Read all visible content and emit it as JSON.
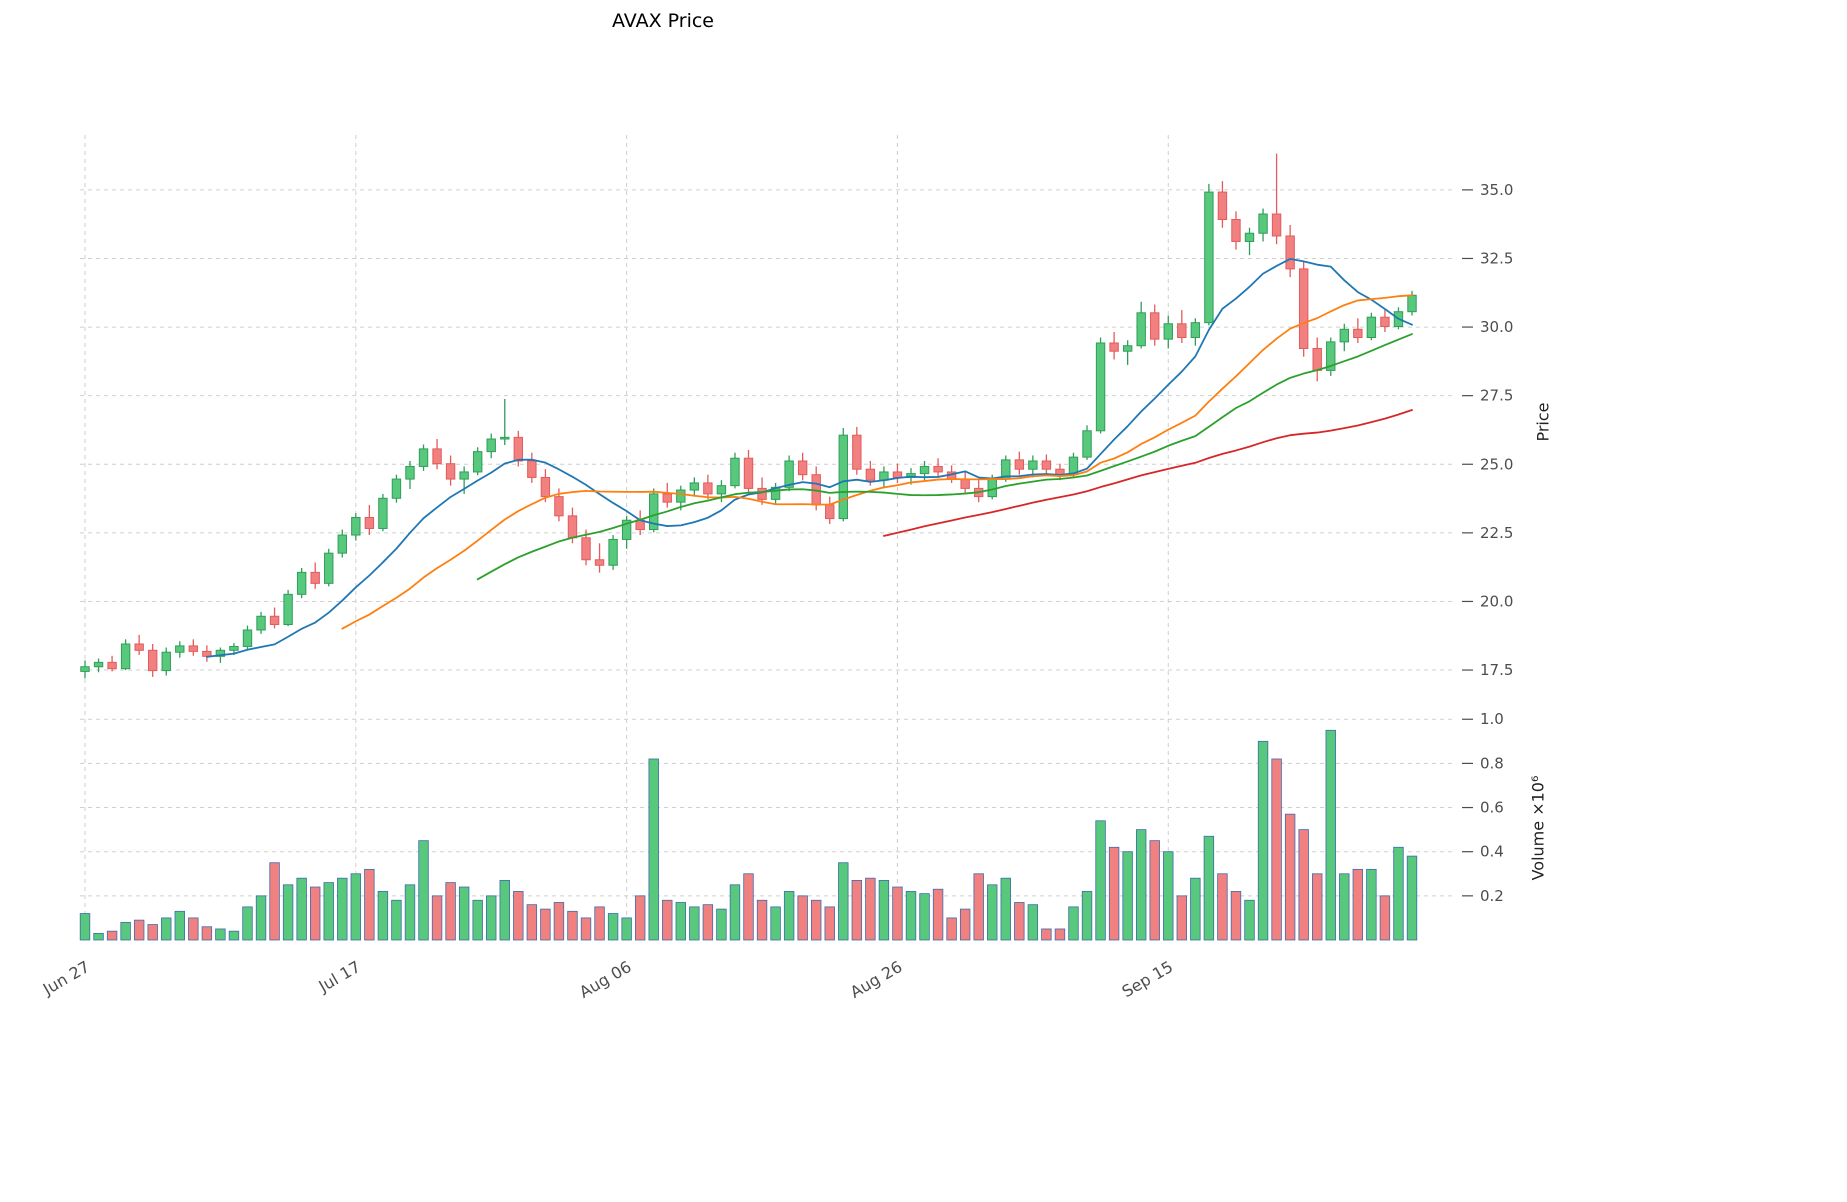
{
  "colors": {
    "up_fill": "#58c87c",
    "up_edge": "#2f9e5a",
    "down_fill": "#f18080",
    "down_edge": "#e35b5b",
    "volume_edge": "#3c6cae",
    "grid": "#cfcfcf",
    "tick_text": "#4d4d4d",
    "ma_blue": "#1f77b4",
    "ma_orange": "#ff7f0e",
    "ma_green": "#2ca02c",
    "ma_red": "#d62728"
  },
  "chart_data": {
    "type": "candlestick",
    "title": "AVAX Price",
    "ylabel": "Price",
    "volume_label": "Volume ×10⁶",
    "legend_position": "none",
    "grid": true,
    "price_ticks": [
      17.5,
      20.0,
      22.5,
      25.0,
      27.5,
      30.0,
      32.5,
      35.0
    ],
    "price_ylim": [
      16.7,
      37.0
    ],
    "volume_ticks": [
      0.2,
      0.4,
      0.6,
      0.8,
      1.0
    ],
    "volume_ylim": [
      0,
      1.06
    ],
    "x_ticks": [
      {
        "index": 0,
        "label": "Jun 27"
      },
      {
        "index": 20,
        "label": "Jul 17"
      },
      {
        "index": 40,
        "label": "Aug 06"
      },
      {
        "index": 60,
        "label": "Aug 26"
      },
      {
        "index": 80,
        "label": "Sep 15"
      }
    ],
    "moving_averages": [
      {
        "label": "MA10",
        "window": 10,
        "color": "#1f77b4"
      },
      {
        "label": "MA20",
        "window": 20,
        "color": "#ff7f0e"
      },
      {
        "label": "MA30",
        "window": 30,
        "color": "#2ca02c"
      },
      {
        "label": "MA60",
        "window": 60,
        "color": "#d62728"
      }
    ],
    "dates": [
      "Jun 27",
      "Jun 28",
      "Jun 29",
      "Jun 30",
      "Jul 01",
      "Jul 02",
      "Jul 03",
      "Jul 04",
      "Jul 05",
      "Jul 06",
      "Jul 07",
      "Jul 08",
      "Jul 09",
      "Jul 10",
      "Jul 11",
      "Jul 12",
      "Jul 13",
      "Jul 14",
      "Jul 15",
      "Jul 16",
      "Jul 17",
      "Jul 18",
      "Jul 19",
      "Jul 20",
      "Jul 21",
      "Jul 22",
      "Jul 23",
      "Jul 24",
      "Jul 25",
      "Jul 26",
      "Jul 27",
      "Jul 28",
      "Jul 29",
      "Jul 30",
      "Jul 31",
      "Aug 01",
      "Aug 02",
      "Aug 03",
      "Aug 04",
      "Aug 05",
      "Aug 06",
      "Aug 07",
      "Aug 08",
      "Aug 09",
      "Aug 10",
      "Aug 11",
      "Aug 12",
      "Aug 13",
      "Aug 14",
      "Aug 15",
      "Aug 16",
      "Aug 17",
      "Aug 18",
      "Aug 19",
      "Aug 20",
      "Aug 21",
      "Aug 22",
      "Aug 23",
      "Aug 24",
      "Aug 25",
      "Aug 26",
      "Aug 27",
      "Aug 28",
      "Aug 29",
      "Aug 30",
      "Aug 31",
      "Sep 01",
      "Sep 02",
      "Sep 03",
      "Sep 04",
      "Sep 05",
      "Sep 06",
      "Sep 07",
      "Sep 08",
      "Sep 09",
      "Sep 10",
      "Sep 11",
      "Sep 12",
      "Sep 13",
      "Sep 14",
      "Sep 15",
      "Sep 16",
      "Sep 17",
      "Sep 18",
      "Sep 19",
      "Sep 20",
      "Sep 21",
      "Sep 22",
      "Sep 23",
      "Sep 24",
      "Sep 25",
      "Sep 26",
      "Sep 27",
      "Sep 28",
      "Sep 29",
      "Sep 30",
      "Oct 01",
      "Oct 02",
      "Oct 03"
    ],
    "ohlc": [
      [
        17.45,
        17.85,
        17.2,
        17.62
      ],
      [
        17.62,
        17.92,
        17.42,
        17.78
      ],
      [
        17.78,
        18.02,
        17.45,
        17.55
      ],
      [
        17.55,
        18.62,
        17.5,
        18.45
      ],
      [
        18.45,
        18.78,
        18.05,
        18.22
      ],
      [
        18.22,
        18.45,
        17.25,
        17.48
      ],
      [
        17.48,
        18.32,
        17.3,
        18.15
      ],
      [
        18.15,
        18.55,
        17.95,
        18.38
      ],
      [
        18.38,
        18.62,
        18.02,
        18.18
      ],
      [
        18.18,
        18.4,
        17.8,
        18.0
      ],
      [
        18.0,
        18.32,
        17.76,
        18.22
      ],
      [
        18.22,
        18.48,
        18.05,
        18.36
      ],
      [
        18.36,
        19.12,
        18.26,
        18.96
      ],
      [
        18.96,
        19.62,
        18.82,
        19.46
      ],
      [
        19.46,
        19.78,
        19.02,
        19.16
      ],
      [
        19.16,
        20.42,
        19.1,
        20.26
      ],
      [
        20.26,
        21.22,
        20.12,
        21.06
      ],
      [
        21.06,
        21.42,
        20.46,
        20.66
      ],
      [
        20.66,
        21.92,
        20.55,
        21.76
      ],
      [
        21.76,
        22.62,
        21.6,
        22.42
      ],
      [
        22.42,
        23.22,
        22.22,
        23.06
      ],
      [
        23.06,
        23.52,
        22.42,
        22.66
      ],
      [
        22.66,
        23.92,
        22.56,
        23.76
      ],
      [
        23.76,
        24.62,
        23.6,
        24.46
      ],
      [
        24.46,
        25.12,
        24.1,
        24.92
      ],
      [
        24.92,
        25.72,
        24.76,
        25.56
      ],
      [
        25.56,
        25.92,
        24.82,
        25.02
      ],
      [
        25.02,
        25.32,
        24.22,
        24.46
      ],
      [
        24.46,
        24.92,
        23.92,
        24.72
      ],
      [
        24.72,
        25.62,
        24.6,
        25.46
      ],
      [
        25.46,
        26.12,
        25.22,
        25.92
      ],
      [
        25.92,
        27.38,
        25.7,
        25.98
      ],
      [
        25.98,
        26.22,
        24.92,
        25.12
      ],
      [
        25.12,
        25.42,
        24.32,
        24.52
      ],
      [
        24.52,
        24.82,
        23.62,
        23.82
      ],
      [
        23.82,
        24.12,
        22.92,
        23.12
      ],
      [
        23.12,
        23.42,
        22.12,
        22.32
      ],
      [
        22.32,
        22.62,
        21.32,
        21.52
      ],
      [
        21.52,
        22.12,
        21.05,
        21.32
      ],
      [
        21.32,
        22.42,
        21.15,
        22.26
      ],
      [
        22.26,
        23.12,
        21.92,
        22.96
      ],
      [
        22.96,
        23.32,
        22.42,
        22.62
      ],
      [
        22.62,
        24.12,
        22.52,
        23.92
      ],
      [
        23.92,
        24.32,
        23.42,
        23.62
      ],
      [
        23.62,
        24.22,
        23.32,
        24.06
      ],
      [
        24.06,
        24.52,
        23.82,
        24.32
      ],
      [
        24.32,
        24.62,
        23.72,
        23.92
      ],
      [
        23.92,
        24.42,
        23.62,
        24.22
      ],
      [
        24.22,
        25.42,
        24.12,
        25.22
      ],
      [
        25.22,
        25.52,
        23.92,
        24.12
      ],
      [
        24.12,
        24.52,
        23.52,
        23.72
      ],
      [
        23.72,
        24.32,
        23.52,
        24.16
      ],
      [
        24.16,
        25.32,
        24.02,
        25.12
      ],
      [
        25.12,
        25.42,
        24.42,
        24.62
      ],
      [
        24.62,
        24.92,
        23.32,
        23.52
      ],
      [
        23.52,
        23.82,
        22.82,
        23.02
      ],
      [
        23.02,
        26.32,
        22.92,
        26.06
      ],
      [
        26.06,
        26.36,
        24.62,
        24.82
      ],
      [
        24.82,
        25.12,
        24.22,
        24.42
      ],
      [
        24.42,
        24.92,
        24.12,
        24.72
      ],
      [
        24.72,
        25.02,
        24.32,
        24.52
      ],
      [
        24.52,
        24.86,
        24.26,
        24.66
      ],
      [
        24.66,
        25.12,
        24.42,
        24.92
      ],
      [
        24.92,
        25.22,
        24.52,
        24.72
      ],
      [
        24.72,
        24.96,
        24.32,
        24.46
      ],
      [
        24.46,
        24.72,
        23.92,
        24.12
      ],
      [
        24.12,
        24.42,
        23.62,
        23.82
      ],
      [
        23.82,
        24.62,
        23.72,
        24.46
      ],
      [
        24.46,
        25.32,
        24.36,
        25.16
      ],
      [
        25.16,
        25.46,
        24.62,
        24.82
      ],
      [
        24.82,
        25.32,
        24.52,
        25.12
      ],
      [
        25.12,
        25.36,
        24.62,
        24.82
      ],
      [
        24.82,
        25.02,
        24.42,
        24.62
      ],
      [
        24.62,
        25.42,
        24.52,
        25.26
      ],
      [
        25.26,
        26.42,
        25.16,
        26.22
      ],
      [
        26.22,
        29.62,
        26.12,
        29.42
      ],
      [
        29.42,
        29.82,
        28.82,
        29.12
      ],
      [
        29.12,
        29.52,
        28.62,
        29.32
      ],
      [
        29.32,
        30.92,
        29.22,
        30.52
      ],
      [
        30.52,
        30.82,
        29.32,
        29.56
      ],
      [
        29.56,
        30.42,
        29.22,
        30.12
      ],
      [
        30.12,
        30.62,
        29.42,
        29.62
      ],
      [
        29.62,
        30.32,
        29.32,
        30.16
      ],
      [
        30.16,
        35.22,
        30.06,
        34.92
      ],
      [
        34.92,
        35.32,
        33.62,
        33.92
      ],
      [
        33.92,
        34.22,
        32.82,
        33.12
      ],
      [
        33.12,
        33.62,
        32.62,
        33.42
      ],
      [
        33.42,
        34.32,
        33.12,
        34.12
      ],
      [
        34.12,
        36.32,
        33.02,
        33.32
      ],
      [
        33.32,
        33.72,
        31.82,
        32.12
      ],
      [
        32.12,
        32.42,
        28.92,
        29.22
      ],
      [
        29.22,
        29.62,
        28.02,
        28.42
      ],
      [
        28.42,
        29.62,
        28.22,
        29.46
      ],
      [
        29.46,
        30.12,
        29.12,
        29.92
      ],
      [
        29.92,
        30.32,
        29.42,
        29.62
      ],
      [
        29.62,
        30.52,
        29.52,
        30.36
      ],
      [
        30.36,
        30.62,
        29.82,
        30.02
      ],
      [
        30.02,
        30.72,
        29.92,
        30.56
      ],
      [
        30.56,
        31.32,
        30.42,
        31.16
      ]
    ],
    "volume": [
      0.12,
      0.03,
      0.04,
      0.08,
      0.09,
      0.07,
      0.1,
      0.13,
      0.1,
      0.06,
      0.05,
      0.04,
      0.15,
      0.2,
      0.35,
      0.25,
      0.28,
      0.24,
      0.26,
      0.28,
      0.3,
      0.32,
      0.22,
      0.18,
      0.25,
      0.45,
      0.2,
      0.26,
      0.24,
      0.18,
      0.2,
      0.27,
      0.22,
      0.16,
      0.14,
      0.17,
      0.13,
      0.1,
      0.15,
      0.12,
      0.1,
      0.2,
      0.82,
      0.18,
      0.17,
      0.15,
      0.16,
      0.14,
      0.25,
      0.3,
      0.18,
      0.15,
      0.22,
      0.2,
      0.18,
      0.15,
      0.35,
      0.27,
      0.28,
      0.27,
      0.24,
      0.22,
      0.21,
      0.23,
      0.1,
      0.14,
      0.3,
      0.25,
      0.28,
      0.17,
      0.16,
      0.05,
      0.05,
      0.15,
      0.22,
      0.54,
      0.42,
      0.4,
      0.5,
      0.45,
      0.4,
      0.2,
      0.28,
      0.47,
      0.3,
      0.22,
      0.18,
      0.9,
      0.82,
      0.57,
      0.5,
      0.3,
      0.95,
      0.3,
      0.32,
      0.32,
      0.2,
      0.42,
      0.38
    ]
  }
}
